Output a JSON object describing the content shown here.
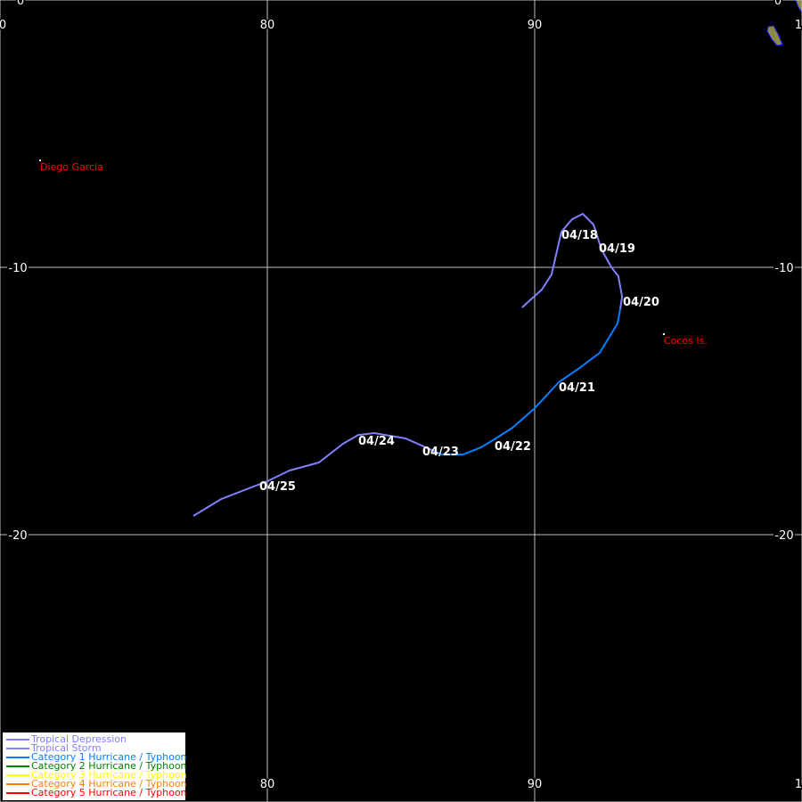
{
  "map": {
    "lon_range": [
      70,
      100
    ],
    "lat_range": [
      0,
      -30
    ],
    "grid_lons": [
      70,
      80,
      90,
      100
    ],
    "grid_lats": [
      0,
      -10,
      -20,
      -30
    ],
    "colors": {
      "background": "#000000",
      "grid": "#c0c0c0",
      "land": "#8c8a4a",
      "coast": "#2020ff",
      "place": "#ff0000",
      "date": "#ffffff"
    },
    "top_labels": [
      {
        "text": "0",
        "lon": 70
      },
      {
        "text": "80",
        "lon": 80
      },
      {
        "text": "90",
        "lon": 90
      },
      {
        "text": "1",
        "lon": 100
      }
    ],
    "bottom_labels": [
      {
        "text": "80",
        "lon": 80
      },
      {
        "text": "90",
        "lon": 90
      },
      {
        "text": "1",
        "lon": 100
      }
    ],
    "left_labels": [
      {
        "text": "0",
        "lat": 0
      },
      {
        "text": "-10",
        "lat": -10
      },
      {
        "text": "-20",
        "lat": -20
      }
    ],
    "right_labels": [
      {
        "text": "0",
        "lat": 0
      },
      {
        "text": "-10",
        "lat": -10
      },
      {
        "text": "-20",
        "lat": -20
      }
    ],
    "places": [
      {
        "name": "Diego Garcia",
        "lon": 71.5,
        "lat": -6.0
      },
      {
        "name": "Cocos Is.",
        "lon": 94.83,
        "lat": -12.5
      }
    ]
  },
  "track": {
    "segments": [
      {
        "category": "Tropical Storm",
        "color": "#8080ff",
        "points": [
          [
            89.53,
            -11.5
          ],
          [
            90.27,
            -10.83
          ],
          [
            90.63,
            -10.27
          ],
          [
            91.0,
            -8.67
          ],
          [
            91.4,
            -8.2
          ],
          [
            91.8,
            -8.0
          ],
          [
            92.2,
            -8.4
          ],
          [
            92.5,
            -9.33
          ],
          [
            92.87,
            -10.0
          ],
          [
            93.13,
            -10.33
          ],
          [
            93.27,
            -11.1
          ],
          [
            93.2,
            -11.57
          ]
        ]
      },
      {
        "category": "Category 1 Hurricane / Typhoon",
        "color": "#0080ff",
        "points": [
          [
            93.2,
            -11.57
          ],
          [
            93.1,
            -12.1
          ],
          [
            92.43,
            -13.2
          ],
          [
            91.67,
            -13.77
          ],
          [
            90.9,
            -14.3
          ],
          [
            90.0,
            -15.27
          ],
          [
            89.17,
            -16.0
          ],
          [
            88.5,
            -16.43
          ],
          [
            88.0,
            -16.73
          ],
          [
            87.33,
            -17.0
          ],
          [
            86.5,
            -17.0
          ],
          [
            86.23,
            -16.87
          ]
        ]
      },
      {
        "category": "Tropical Storm",
        "color": "#8080ff",
        "points": [
          [
            86.23,
            -16.87
          ],
          [
            85.17,
            -16.4
          ],
          [
            84.0,
            -16.2
          ],
          [
            83.4,
            -16.27
          ],
          [
            82.83,
            -16.6
          ],
          [
            81.93,
            -17.3
          ],
          [
            80.83,
            -17.6
          ],
          [
            80.0,
            -18.0
          ],
          [
            78.27,
            -18.67
          ],
          [
            77.23,
            -19.3
          ]
        ]
      }
    ],
    "dates": [
      {
        "text": "04/18",
        "lon": 91.0,
        "lat": -8.6
      },
      {
        "text": "04/19",
        "lon": 92.4,
        "lat": -9.1
      },
      {
        "text": "04/20",
        "lon": 93.3,
        "lat": -11.1
      },
      {
        "text": "04/21",
        "lon": 90.9,
        "lat": -14.3
      },
      {
        "text": "04/22",
        "lon": 88.5,
        "lat": -16.5
      },
      {
        "text": "04/23",
        "lon": 85.8,
        "lat": -16.7
      },
      {
        "text": "04/24",
        "lon": 83.4,
        "lat": -16.3
      },
      {
        "text": "04/25",
        "lon": 79.7,
        "lat": -18.0
      }
    ]
  },
  "legend": {
    "items": [
      {
        "label": "Tropical Depression",
        "color": "#8080ff"
      },
      {
        "label": "Tropical Storm",
        "color": "#8080ff"
      },
      {
        "label": "Category 1 Hurricane / Typhoon",
        "color": "#0080ff"
      },
      {
        "label": "Category 2 Hurricane / Typhoon",
        "color": "#008000"
      },
      {
        "label": "Category 3 Hurricane / Typhoon",
        "color": "#ffff00"
      },
      {
        "label": "Category 4 Hurricane / Typhoon",
        "color": "#ff8000"
      },
      {
        "label": "Category 5 Hurricane / Typhoon",
        "color": "#ff0000"
      }
    ]
  }
}
